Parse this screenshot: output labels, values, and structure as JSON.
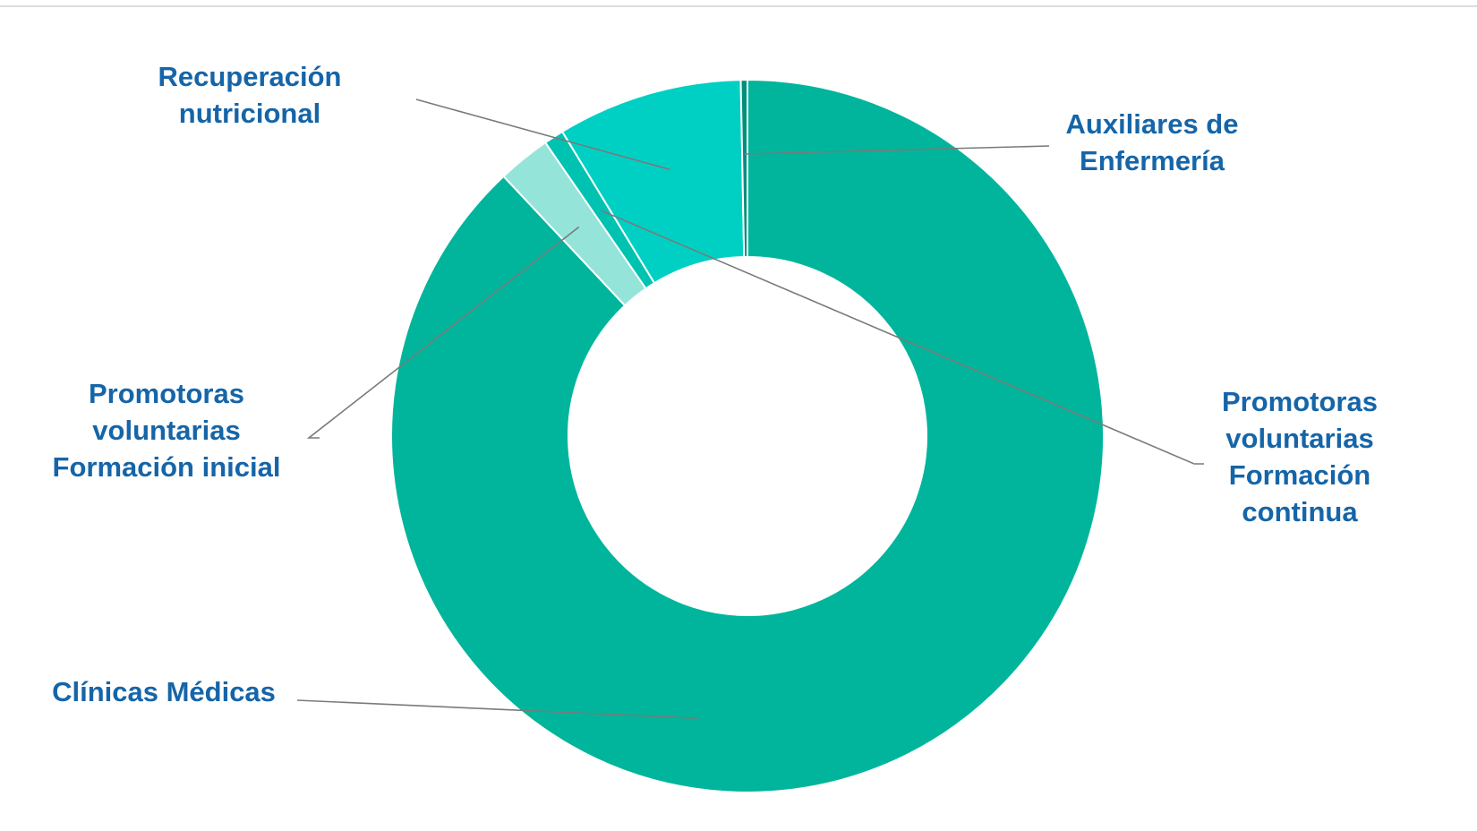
{
  "chart_data": {
    "type": "pie",
    "donut": true,
    "start_angle_deg": 0,
    "direction": "clockwise",
    "label_color": "#1565a8",
    "leader_color": "#7a7a7a",
    "series": [
      {
        "name": "Clínicas Médicas",
        "value": 88.0,
        "color": "#00b59b",
        "label_lines": [
          "Clínicas Médicas"
        ]
      },
      {
        "name": "Promotoras voluntarias Formación inicial",
        "value": 2.4,
        "color": "#94e4da",
        "label_lines": [
          "Promotoras",
          "voluntarias",
          "Formación inicial"
        ]
      },
      {
        "name": "Promotoras voluntarias Formación continua",
        "value": 0.9,
        "color": "#00c2b0",
        "label_lines": [
          "Promotoras",
          "voluntarias",
          "Formación",
          "continua"
        ]
      },
      {
        "name": "Recuperación nutricional",
        "value": 8.4,
        "color": "#00d0c4",
        "label_lines": [
          "Recuperación",
          "nutricional"
        ]
      },
      {
        "name": "Auxiliares de Enfermería",
        "value": 0.3,
        "color": "#008f7a",
        "label_lines": [
          "Auxiliares de",
          "Enfermería"
        ]
      }
    ]
  }
}
